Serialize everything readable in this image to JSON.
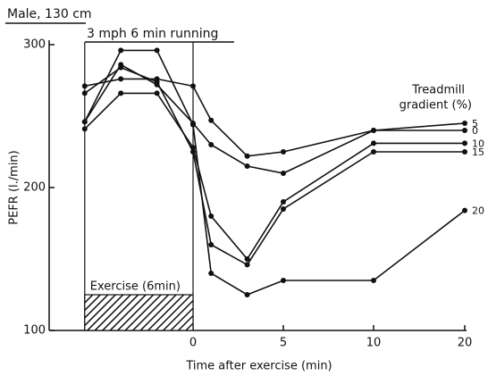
{
  "chart_data": {
    "type": "line",
    "title": "Male, 130 cm",
    "subtitle": "3 mph 6 min running",
    "xlabel": "Time after exercise (min)",
    "ylabel": "PEFR (l./min)",
    "legend_title": [
      "Treadmill",
      "gradient (%)"
    ],
    "x": [
      -6,
      -4,
      -2,
      0,
      1,
      3,
      5,
      10,
      20
    ],
    "xlim": [
      -6,
      20
    ],
    "xticks": [
      0,
      5,
      10,
      20
    ],
    "ylim": [
      100,
      300
    ],
    "yticks": [
      100,
      200,
      300
    ],
    "exercise": {
      "label": "Exercise (6min)",
      "start": -6,
      "end": 0,
      "top": 125
    },
    "series": [
      {
        "name": "5",
        "color": "#111111",
        "values": [
          246,
          286,
          272,
          245,
          230,
          215,
          210,
          240,
          245
        ]
      },
      {
        "name": "0",
        "color": "#111111",
        "values": [
          271,
          276,
          276,
          271,
          247,
          222,
          225,
          240,
          240
        ]
      },
      {
        "name": "10",
        "color": "#111111",
        "values": [
          241,
          266,
          266,
          228,
          180,
          150,
          190,
          231,
          231
        ]
      },
      {
        "name": "15",
        "color": "#111111",
        "values": [
          266,
          284,
          274,
          225,
          160,
          146,
          185,
          225,
          225
        ]
      },
      {
        "name": "20",
        "color": "#111111",
        "values": [
          246,
          296,
          296,
          244,
          140,
          125,
          135,
          135,
          184
        ]
      }
    ]
  }
}
